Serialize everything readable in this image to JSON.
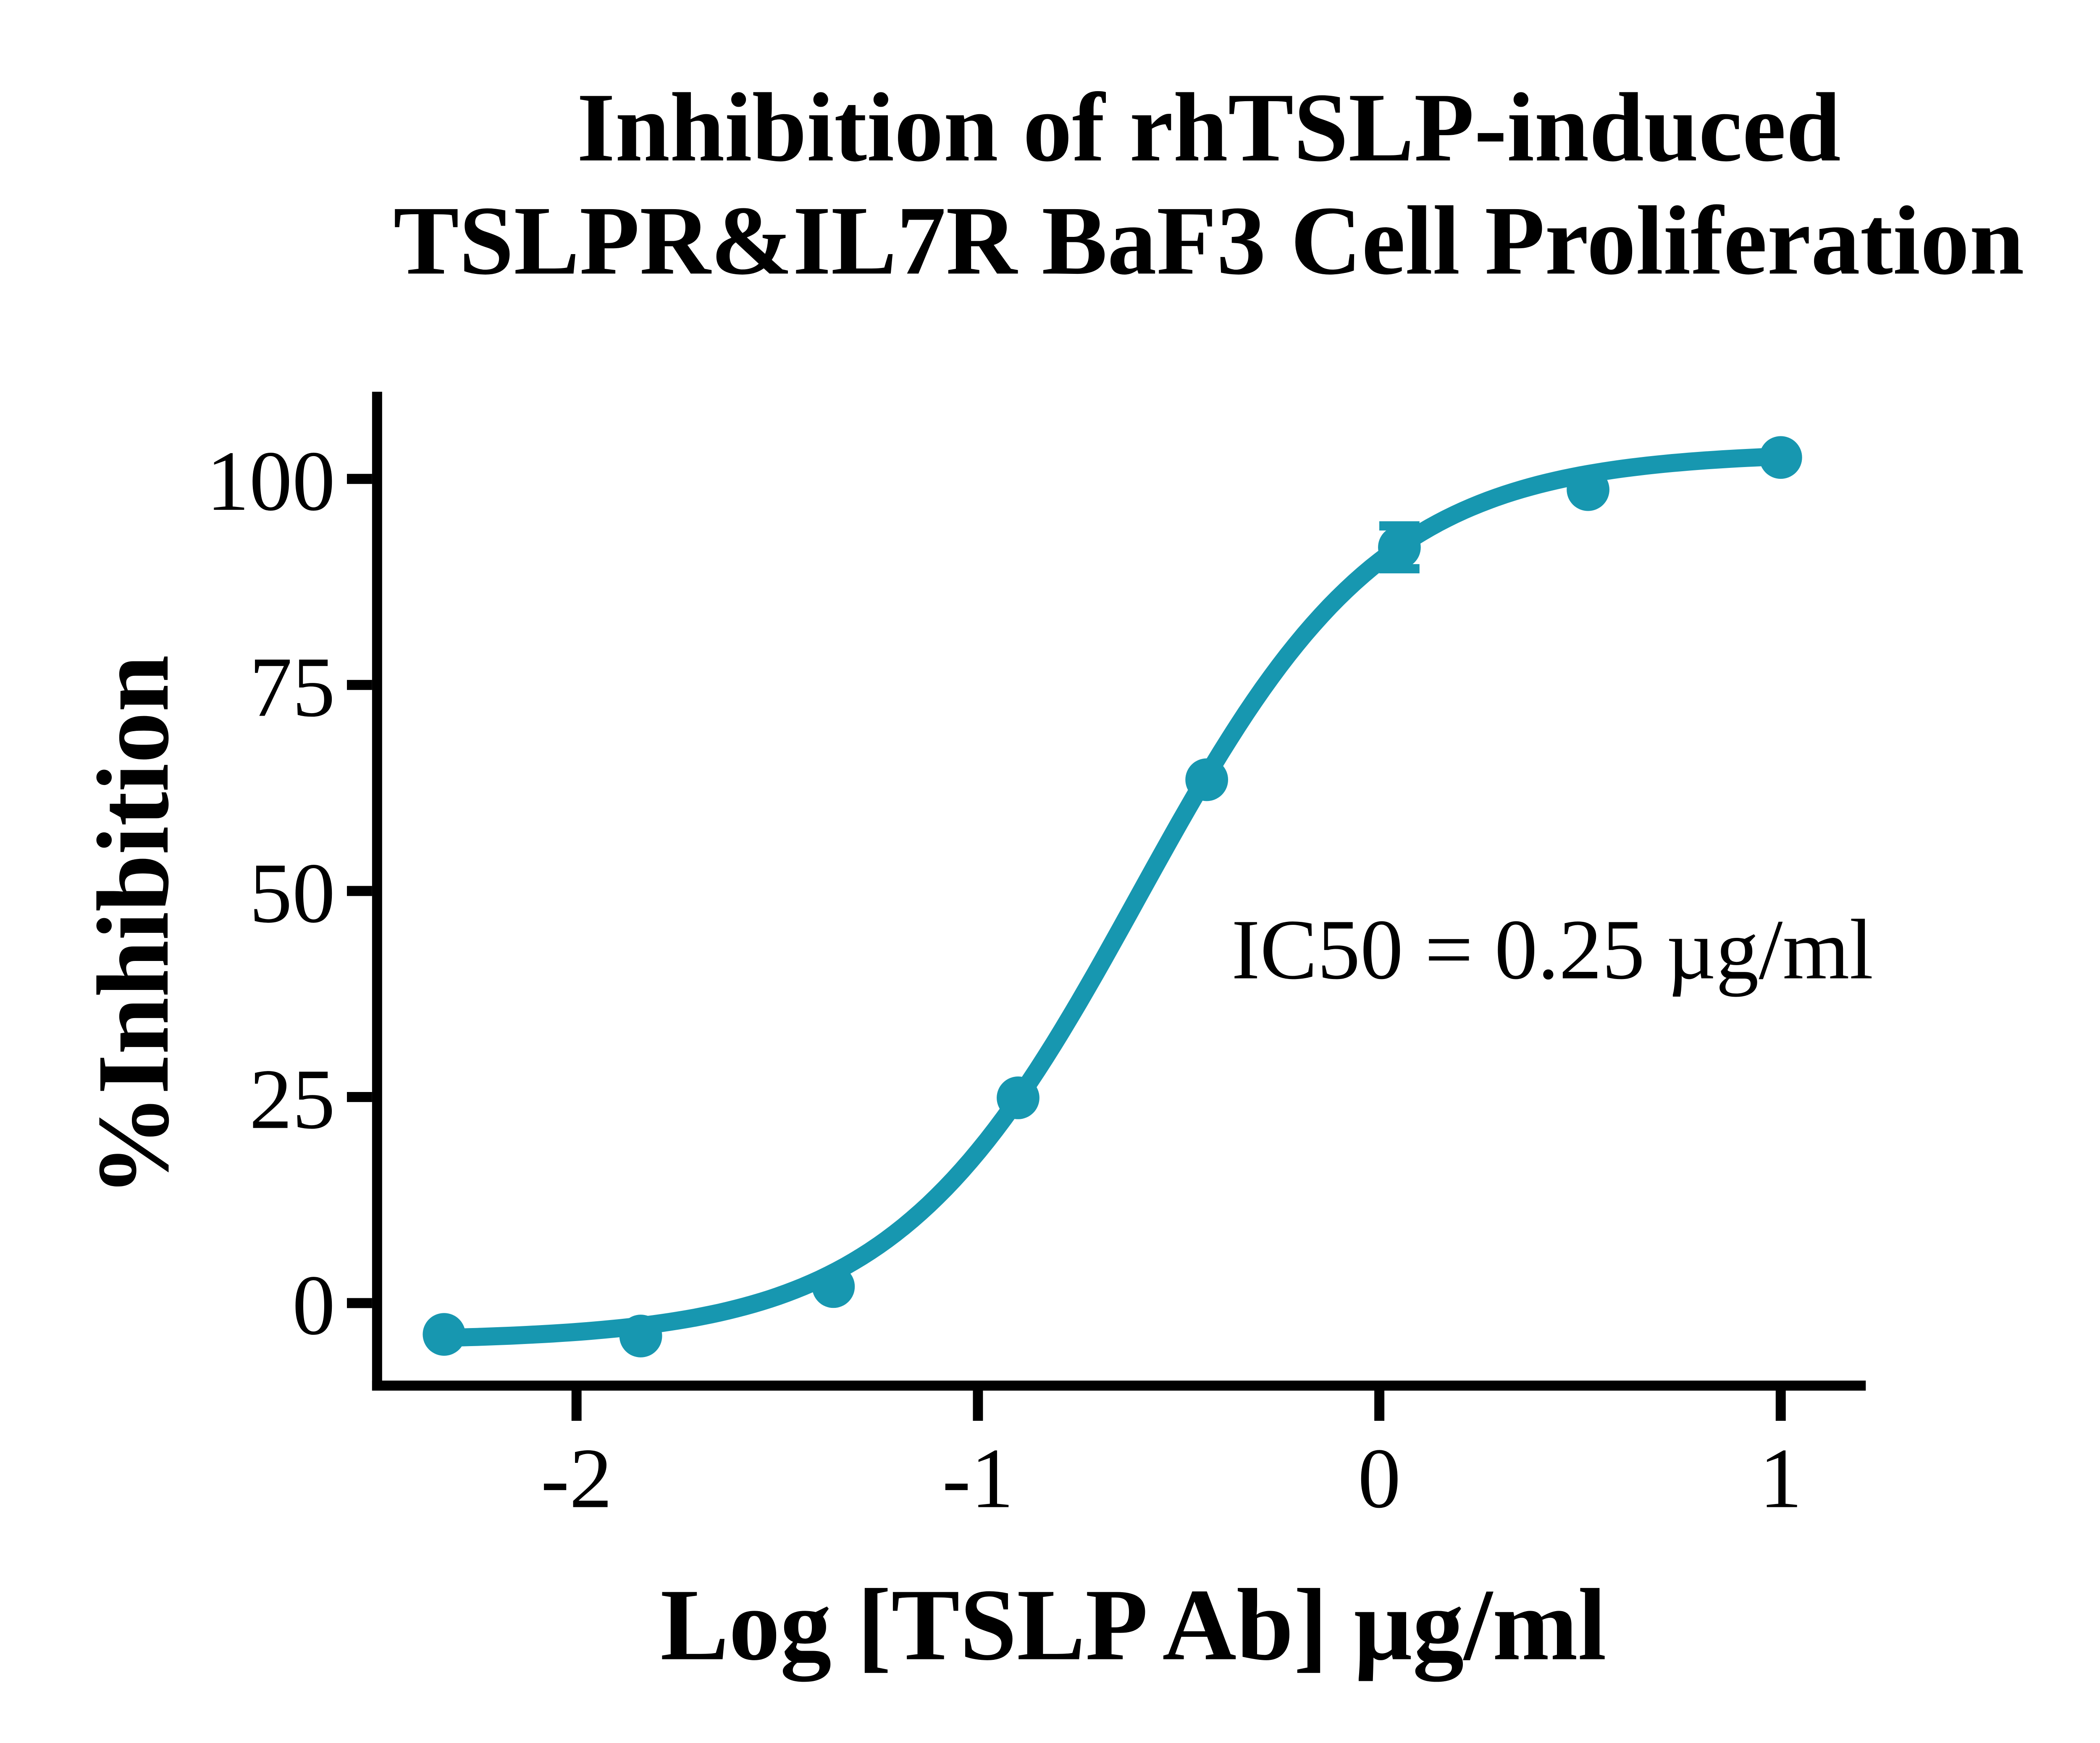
{
  "page": {
    "background_color": "#ffffff"
  },
  "chart_data": {
    "type": "scatter",
    "title_lines": [
      "Inhibition of rhTSLP-induced",
      "TSLPR&IL7R BaF3 Cell Proliferation"
    ],
    "xlabel": "Log [TSLP Ab] µg/ml",
    "ylabel": "%Inhibition",
    "annotation": "IC50 = 0.25 µg/ml",
    "series_color": "#1797B0",
    "axis_color": "#000000",
    "x_ticks": [
      -2,
      -1,
      0,
      1
    ],
    "y_ticks": [
      0,
      25,
      50,
      75,
      100
    ],
    "xlim": [
      -2.5,
      1.21
    ],
    "ylim": [
      -10,
      108
    ],
    "grid": false,
    "legend_position": "none",
    "points": [
      {
        "x": -2.33,
        "y": -3.8
      },
      {
        "x": -1.84,
        "y": -4.0
      },
      {
        "x": -1.36,
        "y": 2.0
      },
      {
        "x": -0.9,
        "y": 24.9
      },
      {
        "x": -0.43,
        "y": 63.5
      },
      {
        "x": 0.05,
        "y": 91.7,
        "error": 2.6
      },
      {
        "x": 0.52,
        "y": 98.7
      },
      {
        "x": 1.0,
        "y": 102.6
      }
    ],
    "fit_curve": {
      "model": "four-parameter-logistic",
      "bottom": -4.6,
      "top": 103.3,
      "logIC50": -0.6,
      "hill": 1.42
    }
  }
}
